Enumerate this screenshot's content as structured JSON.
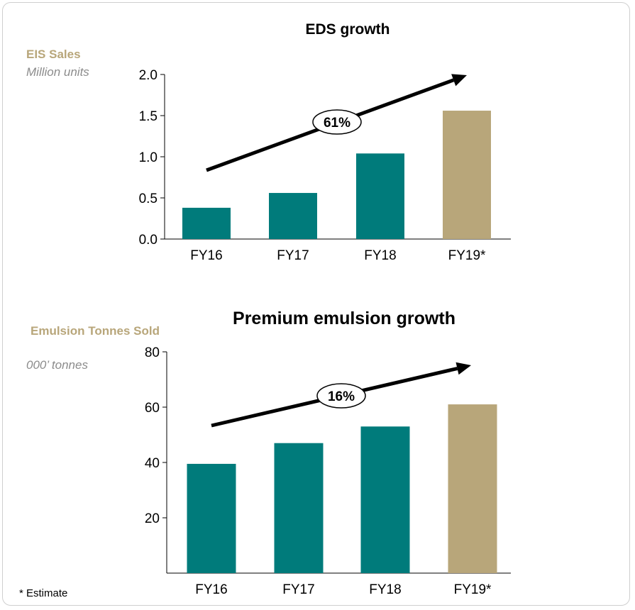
{
  "footnote": "* Estimate",
  "colors": {
    "actual": "#007b7b",
    "estimate": "#b8a67a",
    "ylabel": "#b8a67a",
    "unit": "#8c8c8c"
  },
  "chart_data": [
    {
      "type": "bar",
      "title": "EDS growth",
      "ylabel": "EIS Sales",
      "yunit": "Million units",
      "categories": [
        "FY16",
        "FY17",
        "FY18",
        "FY19*"
      ],
      "values": [
        0.38,
        0.56,
        1.04,
        1.56
      ],
      "ylim": [
        0,
        2.0
      ],
      "yticks": [
        "0.0",
        "0.5",
        "1.0",
        "1.5",
        "2.0"
      ],
      "estimate_categories": [
        "FY19*"
      ],
      "annotation": {
        "text": "61%",
        "kind": "growth-arrow"
      },
      "grid": false
    },
    {
      "type": "bar",
      "title": "Premium emulsion growth",
      "ylabel": "Emulsion Tonnes Sold",
      "yunit": "000’ tonnes",
      "categories": [
        "FY16",
        "FY17",
        "FY18",
        "FY19*"
      ],
      "values": [
        39.5,
        47,
        53,
        61
      ],
      "ylim": [
        0,
        80
      ],
      "yticks": [
        "20",
        "40",
        "60",
        "80"
      ],
      "estimate_categories": [
        "FY19*"
      ],
      "annotation": {
        "text": "16%",
        "kind": "growth-arrow"
      },
      "grid": false
    }
  ]
}
